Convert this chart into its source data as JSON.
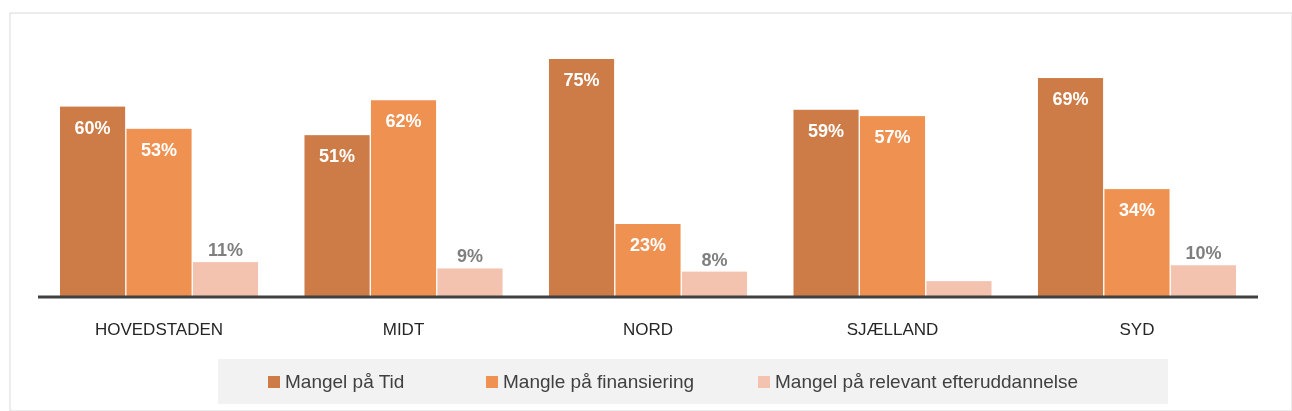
{
  "chart_data": {
    "type": "bar",
    "categories": [
      "HOVEDSTADEN",
      "MIDT",
      "NORD",
      "SJÆLLAND",
      "SYD"
    ],
    "series": [
      {
        "name": "Mangel på Tid",
        "color": "#cd7c47",
        "values": [
          60,
          51,
          75,
          59,
          69
        ],
        "value_labels": [
          "60%",
          "51%",
          "75%",
          "59%",
          "69%"
        ]
      },
      {
        "name": "Mangle på finansiering",
        "color": "#ef9150",
        "values": [
          53,
          62,
          23,
          57,
          34
        ],
        "value_labels": [
          "53%",
          "62%",
          "23%",
          "57%",
          "34%"
        ]
      },
      {
        "name": "Mangel på relevant efteruddannelse",
        "color": "#f4c3b0",
        "values": [
          11,
          9,
          8,
          5,
          10
        ],
        "value_labels": [
          "11%",
          "9%",
          "8%",
          null,
          "10%"
        ]
      }
    ],
    "legend": "bottom"
  }
}
